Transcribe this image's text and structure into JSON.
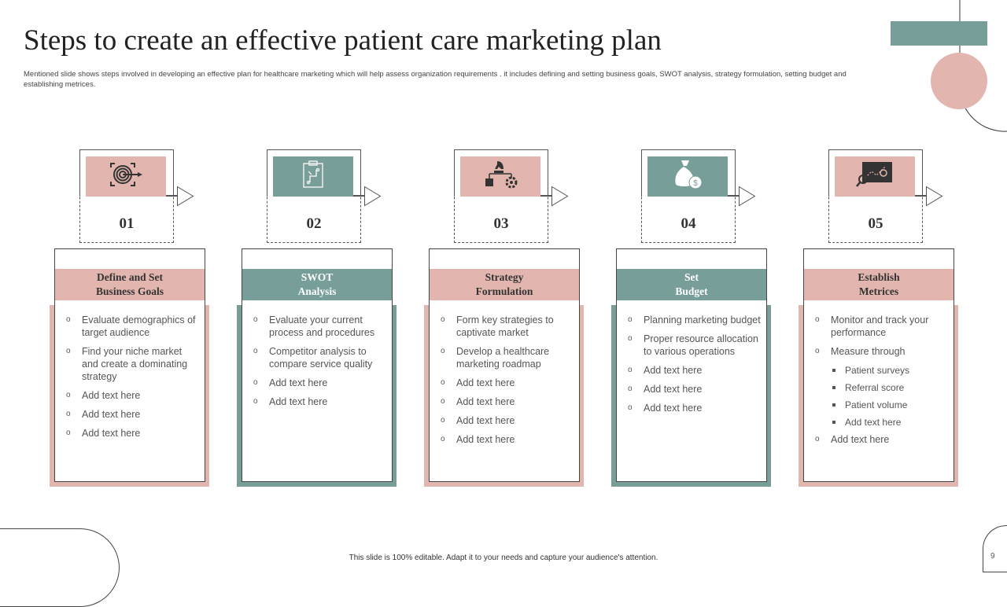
{
  "title": "Steps to create an effective patient care marketing plan",
  "subtitle": "Mentioned slide shows steps involved in developing an effective plan for healthcare marketing which will help assess organization requirements . it includes defining and setting business goals, SWOT analysis, strategy formulation, setting budget and establishing metrices.",
  "colors": {
    "pink": "#e2b6ae",
    "teal": "#789e99"
  },
  "steps": [
    {
      "number": "01",
      "icon": "target-dart-icon",
      "color": "pink",
      "heading": [
        "Define and Set",
        "Business Goals"
      ],
      "items": [
        "Evaluate demographics of target audience",
        "Find your niche market and create a dominating strategy",
        "Add text here",
        "Add text here",
        "Add text here"
      ]
    },
    {
      "number": "02",
      "icon": "clipboard-strategy-icon",
      "color": "teal",
      "heading": [
        "SWOT",
        "Analysis"
      ],
      "items": [
        "Evaluate your current process and procedures",
        "Competitor analysis to compare service quality",
        "Add text here",
        "Add text here"
      ]
    },
    {
      "number": "03",
      "icon": "chess-knight-gear-icon",
      "color": "pink",
      "heading": [
        "Strategy",
        "Formulation"
      ],
      "items": [
        "Form key strategies to captivate market",
        "Develop a healthcare marketing roadmap",
        "Add text here",
        "Add text here",
        "Add text here",
        "Add text here"
      ]
    },
    {
      "number": "04",
      "icon": "money-bag-icon",
      "color": "teal",
      "heading": [
        "Set",
        "Budget"
      ],
      "items": [
        "Planning marketing budget",
        "Proper resource allocation to various operations",
        "Add text here",
        "Add text here",
        "Add text here"
      ]
    },
    {
      "number": "05",
      "icon": "performance-chart-icon",
      "color": "pink",
      "heading": [
        "Establish",
        "Metrices"
      ],
      "items": [
        "Monitor and track your performance",
        "Measure through"
      ],
      "subitems": [
        "Patient surveys",
        "Referral score",
        "Patient volume",
        "Add text here"
      ],
      "after": [
        "Add text here"
      ]
    }
  ],
  "footer": "This slide is 100% editable. Adapt it to your needs and capture your audience's attention.",
  "page_number": "9"
}
